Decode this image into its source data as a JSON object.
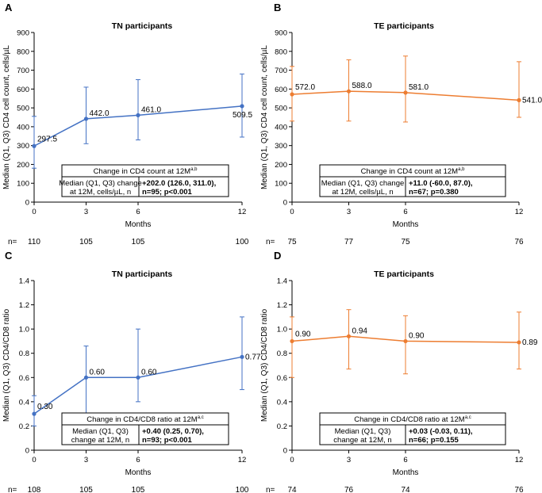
{
  "figure_name": "CD4 count and CD4/CD8 ratio over 12 months",
  "colors": {
    "tn": "#4472C4",
    "te": "#ED7D31"
  },
  "chart_data": [
    {
      "panel": "A",
      "type": "line",
      "title": "TN participants",
      "ylabel": "Median (Q1, Q3) CD4 cell count, cells/µL",
      "xlabel": "Months",
      "x": [
        0,
        3,
        6,
        12
      ],
      "xticks": [
        "0",
        "3",
        "6",
        "12"
      ],
      "yticks": [
        "0",
        "100",
        "200",
        "300",
        "400",
        "500",
        "600",
        "700",
        "800",
        "900"
      ],
      "ylim": [
        0,
        900
      ],
      "xlim": [
        0,
        12
      ],
      "series": [
        {
          "name": "TN participants",
          "values": [
            297.5,
            442.0,
            461.0,
            509.5
          ],
          "q1": [
            180,
            310,
            330,
            345
          ],
          "q3": [
            455,
            610,
            650,
            680
          ],
          "labels": [
            "297.5",
            "442.0",
            "461.0",
            "509.5"
          ]
        }
      ],
      "n_prefix": "n=",
      "n_values": [
        "110",
        "105",
        "105",
        "100"
      ],
      "box": {
        "header": "Change in CD4 count at 12M",
        "header_sup": "a,b",
        "label_line1": "Median (Q1, Q3) change",
        "label_line2": "at 12M, cells/µL, n",
        "value_line1": "+202.0 (126.0, 311.0),",
        "value_line2": "n=95; p<0.001"
      }
    },
    {
      "panel": "B",
      "type": "line",
      "title": "TE participants",
      "ylabel": "Median (Q1, Q3) CD4 cell count, cells/µL",
      "xlabel": "Months",
      "x": [
        0,
        3,
        6,
        12
      ],
      "xticks": [
        "0",
        "3",
        "6",
        "12"
      ],
      "yticks": [
        "0",
        "100",
        "200",
        "300",
        "400",
        "500",
        "600",
        "700",
        "800",
        "900"
      ],
      "ylim": [
        0,
        900
      ],
      "xlim": [
        0,
        12
      ],
      "series": [
        {
          "name": "TE participants",
          "values": [
            572.0,
            588.0,
            581.0,
            541.0
          ],
          "q1": [
            430,
            430,
            425,
            450
          ],
          "q3": [
            720,
            755,
            775,
            745
          ],
          "labels": [
            "572.0",
            "588.0",
            "581.0",
            "541.0"
          ]
        }
      ],
      "n_prefix": "n=",
      "n_values": [
        "75",
        "77",
        "75",
        "76"
      ],
      "box": {
        "header": "Change in CD4 count at 12M",
        "header_sup": "a,b",
        "label_line1": "Median (Q1, Q3) change",
        "label_line2": "at 12M, cells/µL, n",
        "value_line1": "+11.0 (-60.0, 87.0),",
        "value_line2": "n=67; p=0.380"
      }
    },
    {
      "panel": "C",
      "type": "line",
      "title": "TN participants",
      "ylabel": "Median (Q1, Q3) CD4/CD8 ratio",
      "xlabel": "Months",
      "x": [
        0,
        3,
        6,
        12
      ],
      "xticks": [
        "0",
        "3",
        "6",
        "12"
      ],
      "yticks": [
        "0",
        "0.2",
        "0.4",
        "0.6",
        "0.8",
        "1.0",
        "1.2",
        "1.4"
      ],
      "ylim": [
        0,
        1.4
      ],
      "xlim": [
        0,
        12
      ],
      "series": [
        {
          "name": "TN participants",
          "values": [
            0.3,
            0.6,
            0.6,
            0.77
          ],
          "q1": [
            0.2,
            0.3,
            0.4,
            0.5
          ],
          "q3": [
            0.45,
            0.86,
            1.0,
            1.1
          ],
          "labels": [
            "0.30",
            "0.60",
            "0.60",
            "0.77"
          ]
        }
      ],
      "n_prefix": "n=",
      "n_values": [
        "108",
        "105",
        "105",
        "100"
      ],
      "box": {
        "header": "Change in CD4/CD8 ratio at 12M",
        "header_sup": "a,c",
        "label_line1": "Median (Q1, Q3)",
        "label_line2": "change at 12M, n",
        "value_line1": "+0.40 (0.25, 0.70),",
        "value_line2": "n=93; p<0.001"
      }
    },
    {
      "panel": "D",
      "type": "line",
      "title": "TE participants",
      "ylabel": "Median (Q1, Q3) CD4/CD8 ratio",
      "xlabel": "Months",
      "x": [
        0,
        3,
        6,
        12
      ],
      "xticks": [
        "0",
        "3",
        "6",
        "12"
      ],
      "yticks": [
        "0",
        "0.2",
        "0.4",
        "0.6",
        "0.8",
        "1.0",
        "1.2",
        "1.4"
      ],
      "ylim": [
        0,
        1.4
      ],
      "xlim": [
        0,
        12
      ],
      "series": [
        {
          "name": "TE participants",
          "values": [
            0.9,
            0.94,
            0.9,
            0.89
          ],
          "q1": [
            0.6,
            0.67,
            0.63,
            0.67
          ],
          "q3": [
            1.1,
            1.16,
            1.11,
            1.14
          ],
          "labels": [
            "0.90",
            "0.94",
            "0.90",
            "0.89"
          ]
        }
      ],
      "n_prefix": "n=",
      "n_values": [
        "74",
        "76",
        "74",
        "76"
      ],
      "box": {
        "header": "Change in CD4/CD8 ratio at 12M",
        "header_sup": "a,c",
        "label_line1": "Median (Q1, Q3)",
        "label_line2": "change at 12M, n",
        "value_line1": "+0.03 (-0.03, 0.11),",
        "value_line2": "n=66; p=0.155"
      }
    }
  ]
}
